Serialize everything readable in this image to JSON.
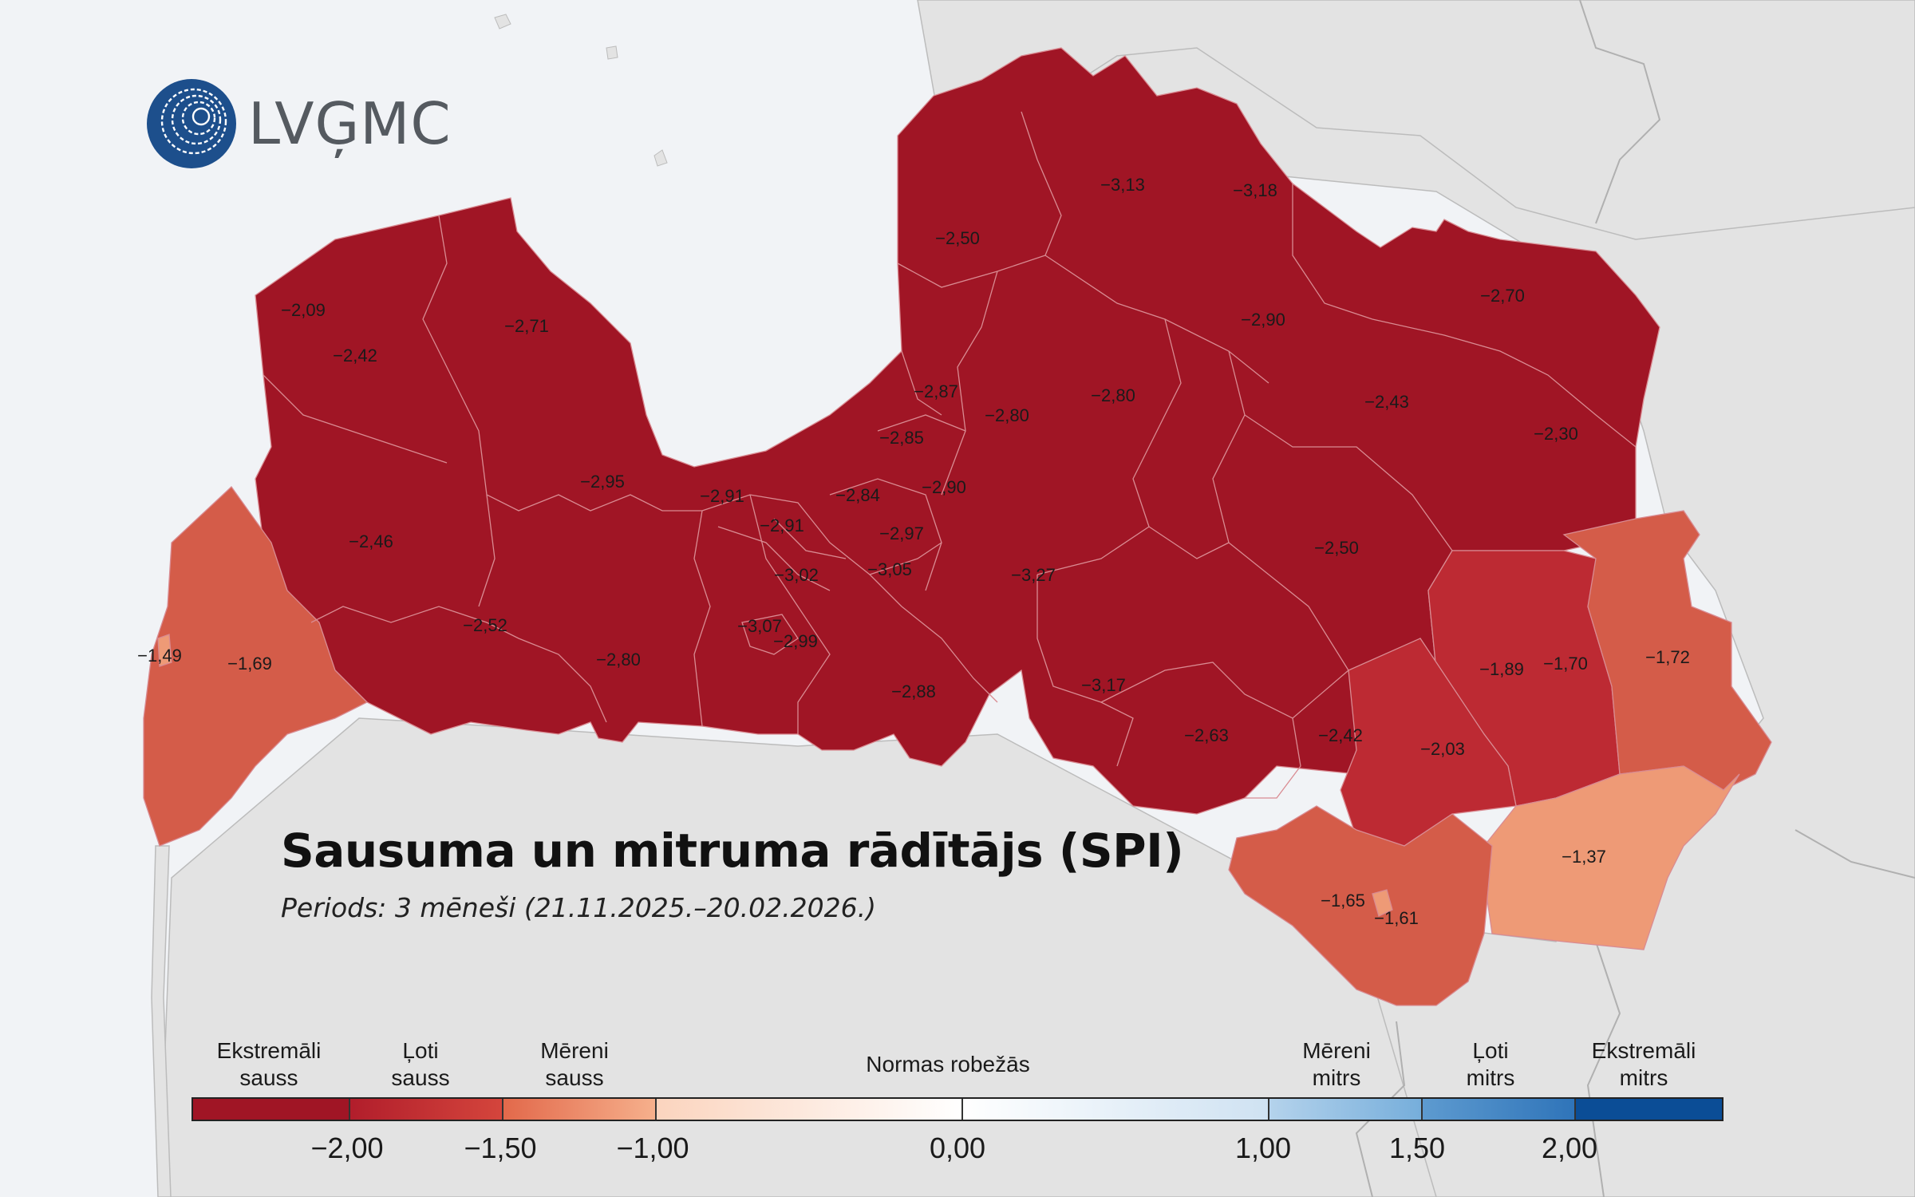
{
  "title": "Sausuma un mitruma rādītājs (SPI)",
  "subtitle": "Periods: 3 mēneši (21.11.2025.–20.02.2026.)",
  "logo_text": "LVĢMC",
  "legend": {
    "categories": [
      {
        "line1": "Ekstremāli",
        "line2": "sauss"
      },
      {
        "line1": "Ļoti",
        "line2": "sauss"
      },
      {
        "line1": "Mēreni",
        "line2": "sauss"
      },
      {
        "line1": "Normas robežās",
        "line2": ""
      },
      {
        "line1": "Mēreni",
        "line2": "mitrs"
      },
      {
        "line1": "Ļoti",
        "line2": "mitrs"
      },
      {
        "line1": "Ekstremāli",
        "line2": "mitrs"
      }
    ],
    "ticks": [
      "−2,00",
      "−1,50",
      "−1,00",
      "0,00",
      "1,00",
      "1,50",
      "2,00"
    ],
    "colors": {
      "extreme_dry": "#a01525",
      "very_dry": "#c12a32",
      "moderately_dry": "#f08a5f",
      "normal_dry": "#fde3d3",
      "normal_wet": "#ddeaf5",
      "moderately_wet": "#8cbbe0",
      "very_wet": "#4b8fc9",
      "extreme_wet": "#0b4d96"
    }
  },
  "region_colors": {
    "extreme": "#a01525",
    "very_dry_deep": "#bd2a33",
    "very_dry_mid": "#d45c49",
    "moderate": "#ee9a76"
  },
  "values": [
    "−2,09",
    "−2,42",
    "−2,71",
    "−2,46",
    "−2,95",
    "−2,52",
    "−2,80",
    "−1,49",
    "−1,69",
    "−2,91",
    "−2,91",
    "−2,84",
    "−2,87",
    "−2,85",
    "−2,80",
    "−2,90",
    "−2,97",
    "−3,02",
    "−3,05",
    "−3,07",
    "−2,99",
    "−2,88",
    "−3,27",
    "−3,17",
    "−2,63",
    "−2,42",
    "−2,03",
    "−2,50",
    "−3,13",
    "−3,18",
    "−2,90",
    "−2,70",
    "−2,80",
    "−2,43",
    "−2,30",
    "−2,50",
    "−1,89",
    "−1,70",
    "−1,72",
    "−1,65",
    "−1,61",
    "−1,37"
  ]
}
